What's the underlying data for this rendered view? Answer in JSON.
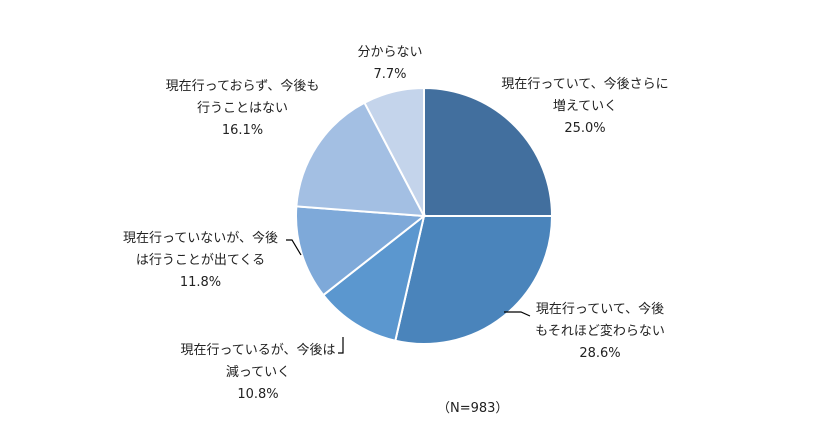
{
  "chart_data": {
    "type": "pie",
    "note": "（N=983）",
    "slices": [
      {
        "label_lines": [
          "現在行っていて、今後さらに",
          "増えていく"
        ],
        "value": 25.0,
        "value_label": "25.0%",
        "color": "#426f9e"
      },
      {
        "label_lines": [
          "現在行っていて、今後",
          "もそれほど変わらない"
        ],
        "value": 28.6,
        "value_label": "28.6%",
        "color": "#4a84bb"
      },
      {
        "label_lines": [
          "現在行っているが、今後は",
          "減っていく"
        ],
        "value": 10.8,
        "value_label": "10.8%",
        "color": "#5b97cf"
      },
      {
        "label_lines": [
          "現在行っていないが、今後",
          "は行うことが出てくる"
        ],
        "value": 11.8,
        "value_label": "11.8%",
        "color": "#7ea9d9"
      },
      {
        "label_lines": [
          "現在行っておらず、今後も",
          "行うことはない"
        ],
        "value": 16.1,
        "value_label": "16.1%",
        "color": "#a3bfe3"
      },
      {
        "label_lines": [
          "分からない"
        ],
        "value": 7.7,
        "value_label": "7.7%",
        "color": "#c4d4eb"
      }
    ]
  }
}
